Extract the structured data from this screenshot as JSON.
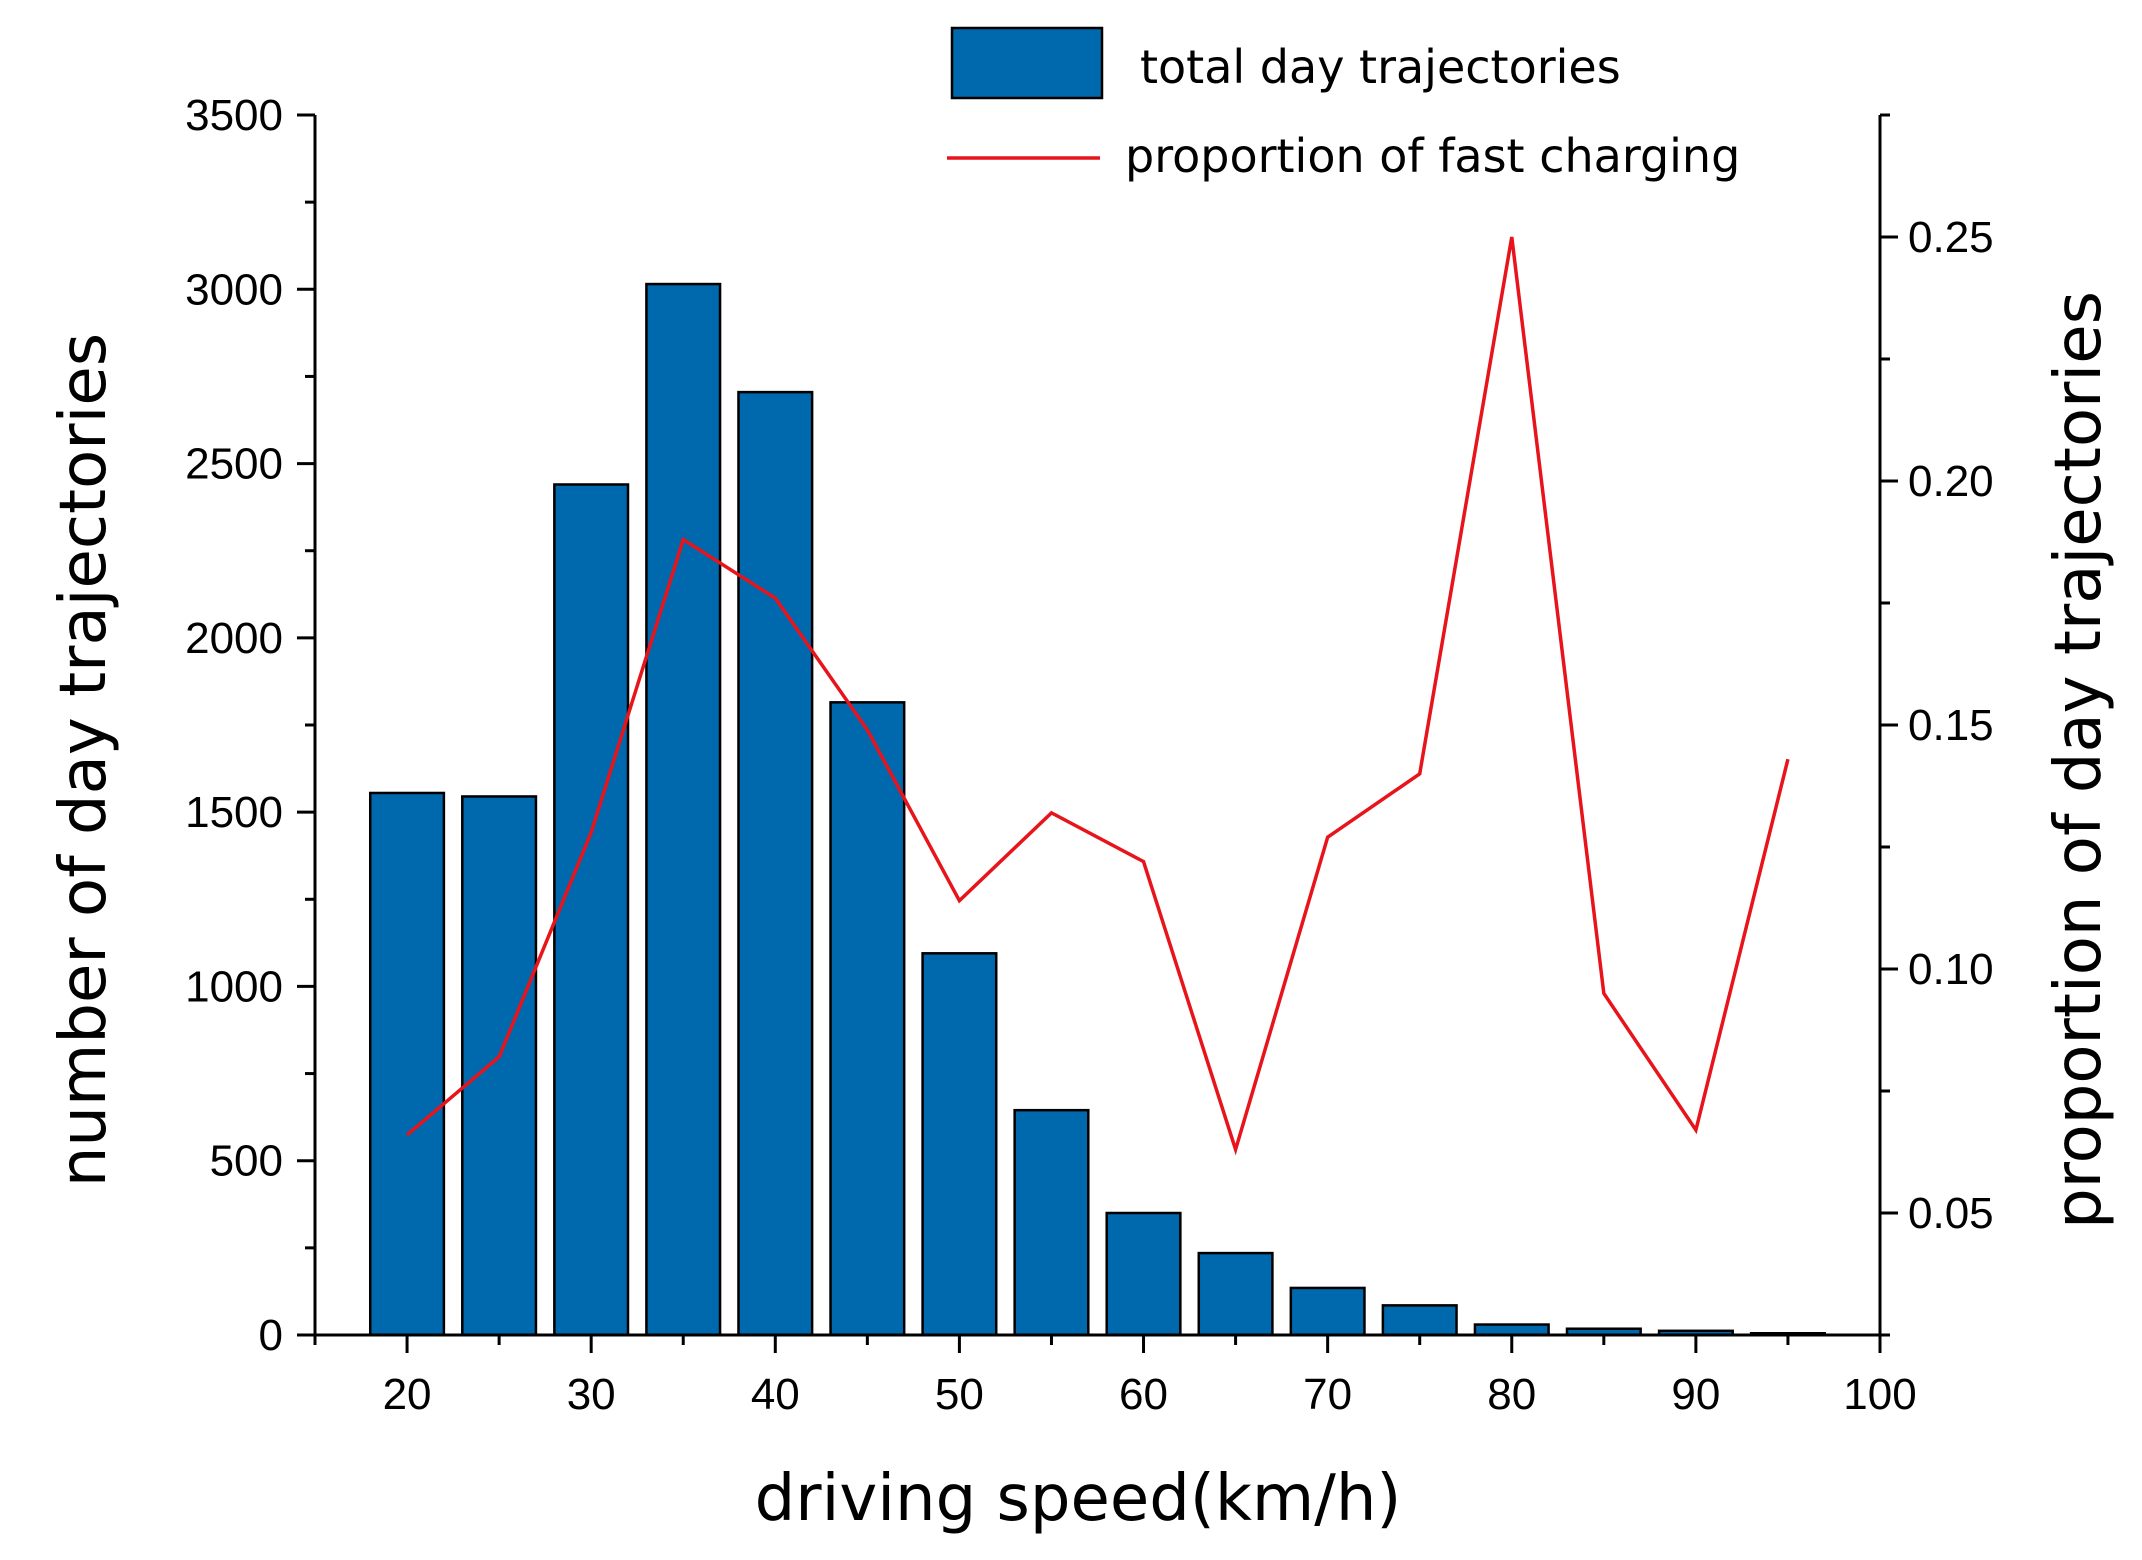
{
  "chart_data": {
    "type": "bar",
    "title": "",
    "xlabel": "driving speed(km/h)",
    "ylabel": "number of day trajectories",
    "y2label": "proportion of day trajectories",
    "xlim": [
      15,
      100
    ],
    "ylim": [
      0,
      3500
    ],
    "y2lim": [
      0.025,
      0.275
    ],
    "x_ticks": [
      20,
      30,
      40,
      50,
      60,
      70,
      80,
      90,
      100
    ],
    "y_ticks": [
      0,
      500,
      1000,
      1500,
      2000,
      2500,
      3000,
      3500
    ],
    "y2_ticks": [
      0.05,
      0.1,
      0.15,
      0.2,
      0.25
    ],
    "y2_tick_labels": [
      "0.05",
      "0.10",
      "0.15",
      "0.20",
      "0.25"
    ],
    "x": [
      20,
      25,
      30,
      35,
      40,
      45,
      50,
      55,
      60,
      65,
      70,
      75,
      80,
      85,
      90,
      95
    ],
    "series": [
      {
        "name": "total day trajectories",
        "type": "bar",
        "axis": "left",
        "color": "#0068ad",
        "values": [
          1555,
          1545,
          2440,
          3015,
          2705,
          1815,
          1095,
          645,
          350,
          235,
          135,
          85,
          30,
          18,
          12,
          5
        ]
      },
      {
        "name": "proportion of fast charging",
        "type": "line",
        "axis": "right",
        "color": "#e8141b",
        "values": [
          0.066,
          0.082,
          0.128,
          0.188,
          0.176,
          0.149,
          0.114,
          0.132,
          0.122,
          0.063,
          0.127,
          0.14,
          0.25,
          0.095,
          0.067,
          0.143
        ]
      }
    ],
    "legend": {
      "position": "top-right",
      "entries": [
        "total day trajectories",
        "proportion of fast charging"
      ]
    },
    "grid": false
  }
}
